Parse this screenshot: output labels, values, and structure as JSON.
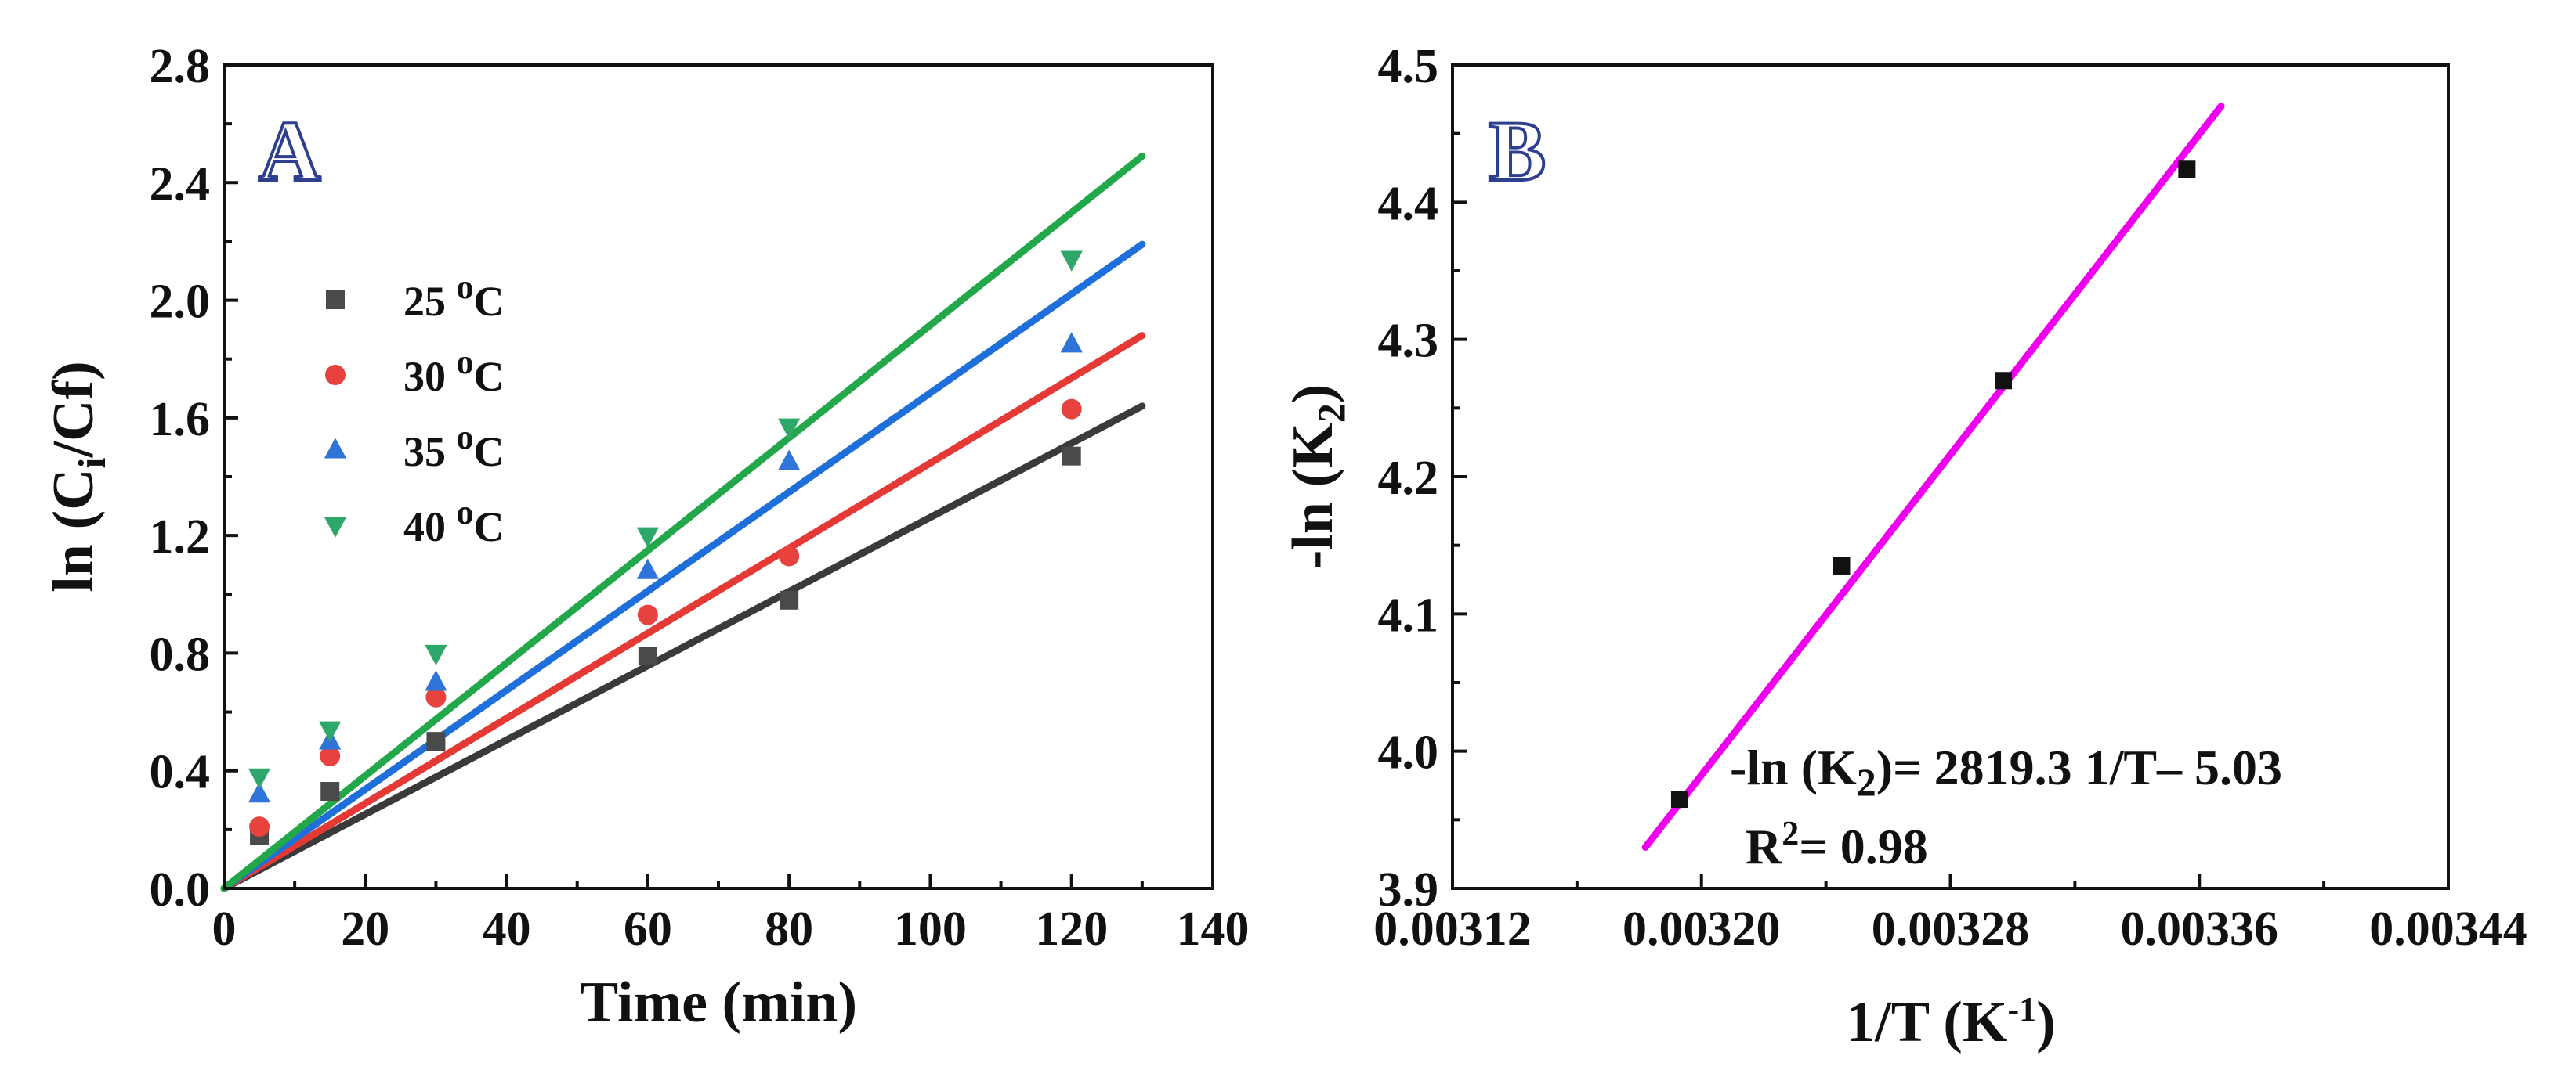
{
  "chart_data": [
    {
      "type": "scatter",
      "panel_label": "A",
      "xlabel": "Time (min)",
      "ylabel": {
        "prefix": "ln (C",
        "sub": "i",
        "suffix": "/Cf)"
      },
      "xlim": [
        0,
        140
      ],
      "ylim": [
        0,
        2.8
      ],
      "xticks": [
        "0",
        "20",
        "40",
        "60",
        "80",
        "100",
        "120",
        "140"
      ],
      "yticks": [
        "0.0",
        "0.4",
        "0.8",
        "1.2",
        "1.6",
        "2.0",
        "2.4",
        "2.8"
      ],
      "legend_position": "upper-left",
      "series": [
        {
          "name": "25 °C",
          "temp": "25",
          "unit": "C",
          "marker": "square",
          "color": "#4a4a4a",
          "line_color": "#3a3a3a",
          "x": [
            5,
            15,
            30,
            60,
            80,
            120
          ],
          "y": [
            0.18,
            0.33,
            0.5,
            0.79,
            0.98,
            1.47
          ],
          "fit": {
            "x": [
              0,
              130
            ],
            "y": [
              0.0,
              1.64
            ]
          }
        },
        {
          "name": "30 °C",
          "temp": "30",
          "unit": "C",
          "marker": "circle",
          "color": "#e8423f",
          "line_color": "#e53935",
          "x": [
            5,
            15,
            30,
            60,
            80,
            120
          ],
          "y": [
            0.21,
            0.45,
            0.65,
            0.93,
            1.13,
            1.63
          ],
          "fit": {
            "x": [
              0,
              130
            ],
            "y": [
              0.0,
              1.88
            ]
          }
        },
        {
          "name": "35 °C",
          "temp": "35",
          "unit": "C",
          "marker": "triangle-up",
          "color": "#2f74d8",
          "line_color": "#1e6fd9",
          "x": [
            5,
            15,
            30,
            60,
            80,
            120
          ],
          "y": [
            0.32,
            0.5,
            0.7,
            1.08,
            1.45,
            1.85
          ],
          "fit": {
            "x": [
              0,
              130
            ],
            "y": [
              0.0,
              2.19
            ]
          }
        },
        {
          "name": "40 °C",
          "temp": "40",
          "unit": "C",
          "marker": "triangle-down",
          "color": "#2ea86a",
          "line_color": "#22a84a",
          "x": [
            5,
            15,
            30,
            60,
            80,
            120
          ],
          "y": [
            0.38,
            0.54,
            0.8,
            1.2,
            1.57,
            2.14
          ],
          "fit": {
            "x": [
              0,
              130
            ],
            "y": [
              0.0,
              2.49
            ]
          }
        }
      ]
    },
    {
      "type": "scatter",
      "panel_label": "B",
      "xlabel": {
        "prefix": "1/T (K",
        "sup": "-1",
        "suffix": ")"
      },
      "ylabel": {
        "prefix": "-ln (K",
        "sub": "2",
        "suffix": ")"
      },
      "xlim": [
        0.00312,
        0.00344
      ],
      "ylim": [
        3.9,
        4.5
      ],
      "xticks": [
        "0.00312",
        "0.00320",
        "0.00328",
        "0.00336",
        "0.00344"
      ],
      "yticks": [
        "3.9",
        "4.0",
        "4.1",
        "4.2",
        "4.3",
        "4.4",
        "4.5"
      ],
      "points": {
        "x": [
          0.003193,
          0.003245,
          0.003297,
          0.003356
        ],
        "y": [
          3.965,
          4.135,
          4.27,
          4.424
        ],
        "marker": "square",
        "color": "#111111"
      },
      "fit": {
        "x": [
          0.003182,
          0.003367
        ],
        "y": [
          3.93,
          4.47
        ],
        "color": "#ee00ee"
      },
      "equation": {
        "prefix": "-ln (K",
        "sub": "2",
        "suffix": ")= 2819.3 1/T– 5.03"
      },
      "r2": {
        "prefix": "R",
        "sup": "2",
        "suffix": "= 0.98"
      }
    }
  ]
}
